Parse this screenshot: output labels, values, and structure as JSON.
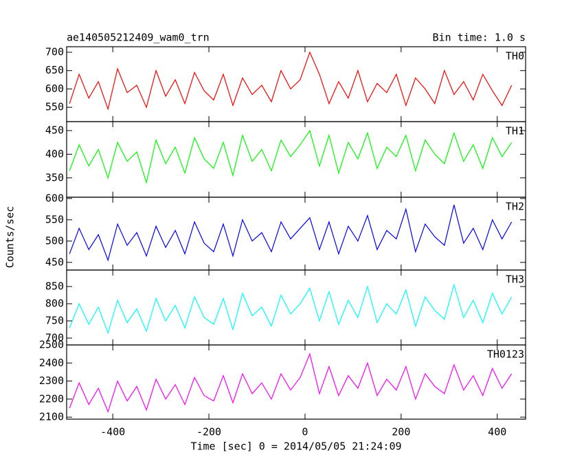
{
  "title": "ae140505212409_wam0_trn",
  "subtitle": "Bin time: 1.0 s",
  "ylabel": "Counts/sec",
  "xlabel": "Time [sec] 0 = 2014/05/05 21:24:09",
  "chart_data": [
    {
      "type": "line",
      "xlim": [
        -496,
        459
      ],
      "xticks": [
        -400,
        -200,
        0,
        200,
        400
      ],
      "ylim": [
        511,
        715
      ],
      "yticks": [
        550,
        600,
        650,
        700
      ],
      "x": [
        -490,
        -470,
        -450,
        -430,
        -410,
        -390,
        -370,
        -350,
        -330,
        -310,
        -290,
        -270,
        -250,
        -230,
        -210,
        -190,
        -170,
        -150,
        -130,
        -110,
        -90,
        -70,
        -50,
        -30,
        -10,
        10,
        30,
        50,
        70,
        90,
        110,
        130,
        150,
        170,
        190,
        210,
        230,
        250,
        270,
        290,
        310,
        330,
        350,
        370,
        390,
        410,
        430
      ],
      "series": [
        {
          "name": "TH0",
          "color": "#ff0000",
          "values": [
            560,
            640,
            575,
            620,
            545,
            655,
            590,
            610,
            550,
            650,
            580,
            625,
            560,
            645,
            595,
            570,
            640,
            555,
            630,
            585,
            610,
            565,
            650,
            600,
            625,
            700,
            640,
            560,
            620,
            575,
            650,
            565,
            615,
            590,
            640,
            555,
            630,
            600,
            560,
            650,
            585,
            620,
            570,
            640,
            595,
            555,
            610
          ]
        }
      ]
    },
    {
      "type": "line",
      "xlim": [
        -496,
        459
      ],
      "xticks": [
        -400,
        -200,
        0,
        200,
        400
      ],
      "ylim": [
        309,
        469
      ],
      "yticks": [
        350,
        400,
        450
      ],
      "x": [
        -490,
        -470,
        -450,
        -430,
        -410,
        -390,
        -370,
        -350,
        -330,
        -310,
        -290,
        -270,
        -250,
        -230,
        -210,
        -190,
        -170,
        -150,
        -130,
        -110,
        -90,
        -70,
        -50,
        -30,
        -10,
        10,
        30,
        50,
        70,
        90,
        110,
        130,
        150,
        170,
        190,
        210,
        230,
        250,
        270,
        290,
        310,
        330,
        350,
        370,
        390,
        410,
        430
      ],
      "series": [
        {
          "name": "TH1",
          "color": "#00ff00",
          "values": [
            365,
            420,
            375,
            410,
            350,
            425,
            385,
            405,
            340,
            430,
            380,
            415,
            360,
            435,
            390,
            370,
            425,
            355,
            440,
            385,
            410,
            365,
            430,
            395,
            420,
            450,
            375,
            440,
            360,
            425,
            390,
            445,
            370,
            415,
            395,
            440,
            365,
            430,
            400,
            380,
            445,
            385,
            420,
            370,
            435,
            395,
            425
          ]
        }
      ]
    },
    {
      "type": "line",
      "xlim": [
        -496,
        459
      ],
      "xticks": [
        -400,
        -200,
        0,
        200,
        400
      ],
      "ylim": [
        432,
        603
      ],
      "yticks": [
        450,
        500,
        550,
        600
      ],
      "x": [
        -490,
        -470,
        -450,
        -430,
        -410,
        -390,
        -370,
        -350,
        -330,
        -310,
        -290,
        -270,
        -250,
        -230,
        -210,
        -190,
        -170,
        -150,
        -130,
        -110,
        -90,
        -70,
        -50,
        -30,
        -10,
        10,
        30,
        50,
        70,
        90,
        110,
        130,
        150,
        170,
        190,
        210,
        230,
        250,
        270,
        290,
        310,
        330,
        350,
        370,
        390,
        410,
        430
      ],
      "series": [
        {
          "name": "TH2",
          "color": "#0000ff",
          "values": [
            470,
            530,
            480,
            515,
            455,
            540,
            490,
            520,
            465,
            535,
            485,
            525,
            470,
            545,
            495,
            475,
            540,
            465,
            550,
            500,
            520,
            475,
            545,
            505,
            530,
            555,
            480,
            545,
            470,
            535,
            500,
            560,
            480,
            525,
            505,
            575,
            475,
            540,
            510,
            490,
            585,
            495,
            530,
            480,
            550,
            505,
            545
          ]
        }
      ]
    },
    {
      "type": "line",
      "xlim": [
        -496,
        459
      ],
      "xticks": [
        -400,
        -200,
        0,
        200,
        400
      ],
      "ylim": [
        680,
        898
      ],
      "yticks": [
        700,
        750,
        800,
        850
      ],
      "x": [
        -490,
        -470,
        -450,
        -430,
        -410,
        -390,
        -370,
        -350,
        -330,
        -310,
        -290,
        -270,
        -250,
        -230,
        -210,
        -190,
        -170,
        -150,
        -130,
        -110,
        -90,
        -70,
        -50,
        -30,
        -10,
        10,
        30,
        50,
        70,
        90,
        110,
        130,
        150,
        170,
        190,
        210,
        230,
        250,
        270,
        290,
        310,
        330,
        350,
        370,
        390,
        410,
        430
      ],
      "series": [
        {
          "name": "TH3",
          "color": "#00ffff",
          "values": [
            730,
            800,
            740,
            790,
            715,
            810,
            745,
            785,
            720,
            815,
            750,
            795,
            730,
            820,
            760,
            740,
            815,
            725,
            830,
            765,
            790,
            735,
            825,
            770,
            800,
            845,
            750,
            835,
            740,
            810,
            760,
            850,
            745,
            800,
            770,
            840,
            735,
            820,
            780,
            755,
            855,
            760,
            810,
            745,
            830,
            770,
            820
          ]
        }
      ]
    },
    {
      "type": "line",
      "xlim": [
        -496,
        459
      ],
      "xticks": [
        -400,
        -200,
        0,
        200,
        400
      ],
      "ylim": [
        2089,
        2500
      ],
      "yticks": [
        2100,
        2200,
        2300,
        2400,
        2500
      ],
      "x": [
        -490,
        -470,
        -450,
        -430,
        -410,
        -390,
        -370,
        -350,
        -330,
        -310,
        -290,
        -270,
        -250,
        -230,
        -210,
        -190,
        -170,
        -150,
        -130,
        -110,
        -90,
        -70,
        -50,
        -30,
        -10,
        10,
        30,
        50,
        70,
        90,
        110,
        130,
        150,
        170,
        190,
        210,
        230,
        250,
        270,
        290,
        310,
        330,
        350,
        370,
        390,
        410,
        430
      ],
      "series": [
        {
          "name": "TH0123",
          "color": "#ff00ff",
          "values": [
            2150,
            2290,
            2170,
            2260,
            2130,
            2300,
            2190,
            2270,
            2140,
            2310,
            2200,
            2280,
            2170,
            2320,
            2220,
            2190,
            2330,
            2180,
            2340,
            2230,
            2290,
            2200,
            2340,
            2250,
            2320,
            2450,
            2230,
            2380,
            2220,
            2330,
            2260,
            2400,
            2220,
            2310,
            2250,
            2380,
            2200,
            2340,
            2270,
            2230,
            2390,
            2250,
            2330,
            2220,
            2370,
            2260,
            2340
          ]
        }
      ]
    }
  ]
}
